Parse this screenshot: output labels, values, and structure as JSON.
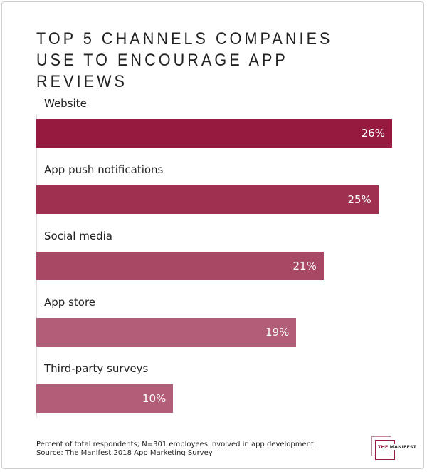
{
  "chart_data": {
    "type": "bar",
    "orientation": "horizontal",
    "title": "TOP 5 CHANNELS COMPANIES USE TO ENCOURAGE APP REVIEWS",
    "categories": [
      "Website",
      "App push notifications",
      "Social media",
      "App store",
      "Third-party surveys"
    ],
    "values": [
      26,
      25,
      21,
      19,
      10
    ],
    "value_labels": [
      "26%",
      "25%",
      "21%",
      "19%",
      "10%"
    ],
    "colors": [
      "#961a40",
      "#a03050",
      "#a84865",
      "#b35e78",
      "#b35e78"
    ],
    "xlim": [
      0,
      26
    ],
    "grid": false
  },
  "footnote": {
    "line1": "Percent of total respondents; N=301 employees involved in app development",
    "line2": "Source: The Manifest 2018 App Marketing Survey"
  },
  "logo": {
    "part1": "THE",
    "part2": "MANIFEST"
  }
}
